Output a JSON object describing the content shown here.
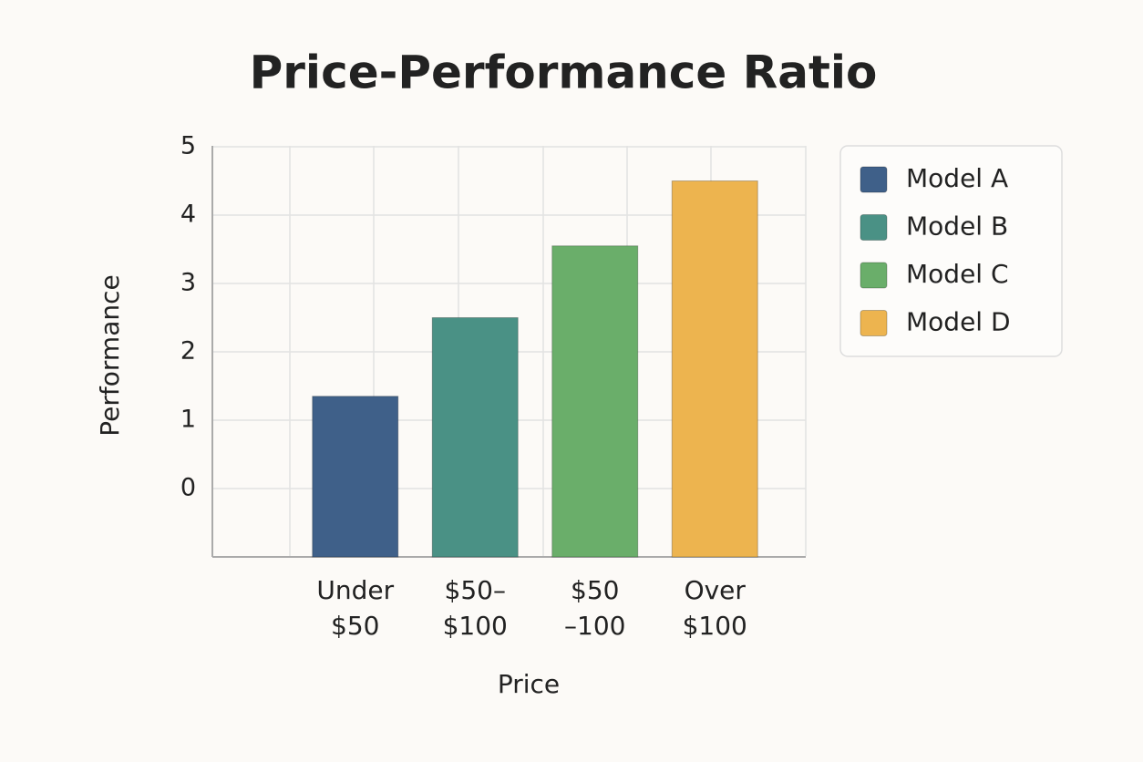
{
  "chart_data": {
    "type": "bar",
    "title": "Price-Performance Ratio",
    "x_label": "Price",
    "y_label": "Performance",
    "categories": [
      "Under\n$50",
      "$50–\n$100",
      "$50\n–100",
      "Over\n$100"
    ],
    "series": [
      {
        "name": "Model A",
        "color": "#3f6089",
        "values": [
          1.35,
          null,
          null,
          null
        ]
      },
      {
        "name": "Model B",
        "color": "#4a9185",
        "values": [
          null,
          2.5,
          null,
          null
        ]
      },
      {
        "name": "Model C",
        "color": "#6aae6a",
        "values": [
          null,
          null,
          3.55,
          null
        ]
      },
      {
        "name": "Model D",
        "color": "#edb44f",
        "values": [
          null,
          null,
          null,
          4.5
        ]
      }
    ],
    "ylim": [
      -1,
      5
    ],
    "yticks": [
      0,
      1,
      2,
      3,
      4,
      5
    ],
    "grid": true,
    "legend": "right"
  }
}
